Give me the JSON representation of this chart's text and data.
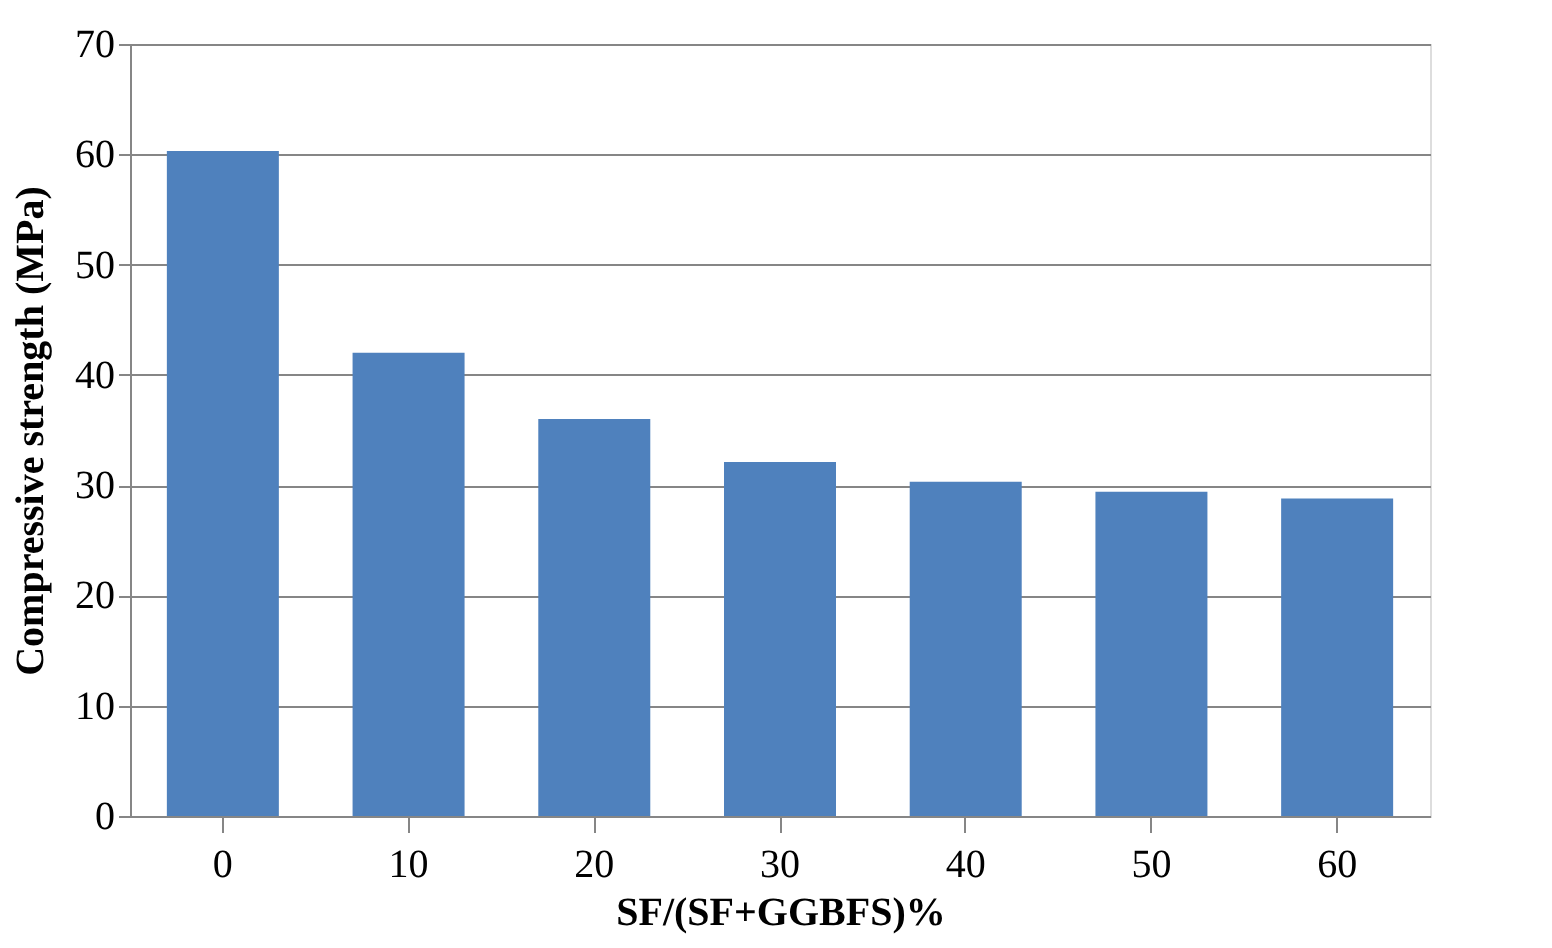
{
  "chart_data": {
    "type": "bar",
    "xlabel": "SF/(SF+GGBFS)%",
    "ylabel": "Compressive strength (MPa)",
    "categories": [
      "0",
      "10",
      "20",
      "30",
      "40",
      "50",
      "60"
    ],
    "values": [
      60.3,
      42.0,
      36.0,
      32.1,
      30.3,
      29.4,
      28.8
    ],
    "color": "#4f81bd",
    "ylim": [
      0,
      70
    ],
    "yticks": [
      0,
      10,
      20,
      30,
      40,
      50,
      60,
      70
    ],
    "grid": "y"
  }
}
